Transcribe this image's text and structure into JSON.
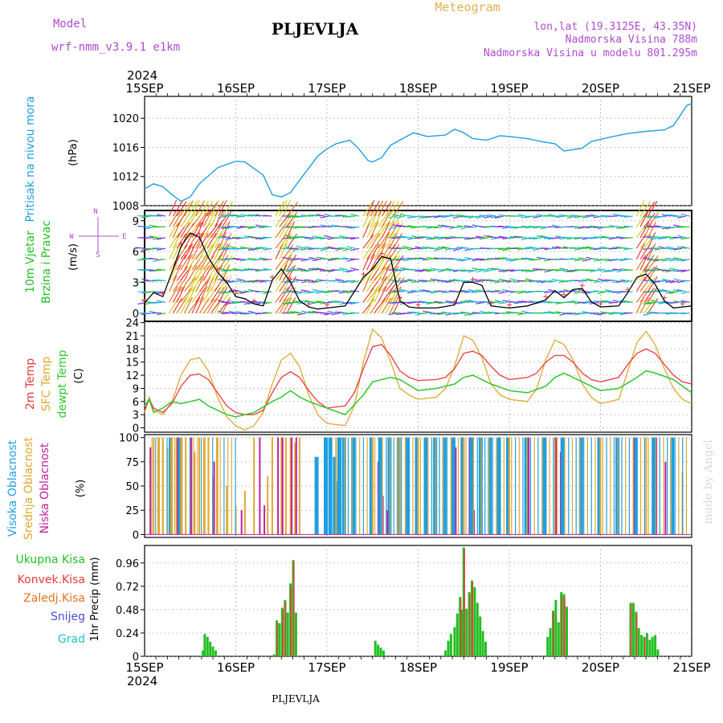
{
  "header": {
    "model_label": "Model",
    "model_name": "wrf-nmm_v3.9.1  e1km",
    "station": "PLJEVLJA",
    "product": "Meteogram",
    "lonlat": "lon,lat (19.3125E, 43.35N)",
    "elevation": "Nadmorska Visina 788m",
    "model_elevation": "Nadmorska Visina u modelu 801.295m",
    "footer_station": "PLJEVLJA",
    "credit": "made by Angel"
  },
  "time_axis": {
    "year": "2024",
    "start_day": 15,
    "end_day": 21,
    "tick_labels": [
      "15SEP",
      "16SEP",
      "17SEP",
      "18SEP",
      "19SEP",
      "20SEP",
      "21SEP"
    ]
  },
  "colors": {
    "pressure": "#1e9fe0",
    "wind_title": "#22c022",
    "temp_2m": "#e83a3a",
    "temp_sfc": "#e0a830",
    "dewpoint": "#2ec82e",
    "cloud_high": "#1e9fe0",
    "cloud_mid": "#e0a830",
    "cloud_low": "#c020a0",
    "precip_total": "#22c022",
    "precip_conv": "#e83a3a",
    "precip_frozen": "#e87020",
    "snow": "#4a4adc",
    "hail": "#20c0c0",
    "wind_speed_line": "#000000",
    "gust_marker": "#e83a3a",
    "label_purple": "#b04ad0",
    "label_gold": "#e0b050"
  },
  "panels": {
    "pressure": {
      "title": "Pritisak na nivou mora",
      "unit": "(hPa)",
      "yticks": [
        "1008",
        "1012",
        "1016",
        "1020"
      ]
    },
    "wind": {
      "title_line1": "10m Vjetar",
      "title_line2": "Brzina i Pravac",
      "unit": "(m/s)",
      "compass_n": "N",
      "compass_s": "S",
      "compass_w": "W",
      "compass_e": "E",
      "yticks": [
        "0",
        "3",
        "6",
        "9"
      ]
    },
    "temperature": {
      "title_2m": "2m Temp",
      "title_sfc": "SFC Temp",
      "title_dew": "dewpt Temp",
      "unit": "(C)",
      "yticks": [
        "0",
        "3",
        "6",
        "9",
        "12",
        "15",
        "18",
        "21",
        "24"
      ]
    },
    "clouds": {
      "title_high": "Visoka Oblacnost",
      "title_mid": "Srednja Oblacnost",
      "title_low": "Niska Oblacnost",
      "unit": "(%)",
      "yticks": [
        "0",
        "25",
        "50",
        "75",
        "100"
      ]
    },
    "precip": {
      "legend_total": "Ukupna Kisa",
      "legend_conv": "Konvek.Kisa",
      "legend_frozen": "Zaledj.Kisa",
      "legend_snow": "Snijeg",
      "legend_hail": "Grad",
      "unit": "1hr Precip (mm)",
      "yticks": [
        "0",
        "0.24",
        "0.48",
        "0.72",
        "0.96"
      ]
    }
  },
  "chart_data": [
    {
      "type": "line",
      "panel": "pressure",
      "ylabel": "(hPa)",
      "ylim": [
        1008,
        1023
      ],
      "x_unit": "day of September 2024",
      "series": [
        {
          "name": "Pritisak na nivou mora",
          "x": [
            15.0,
            15.1,
            15.2,
            15.3,
            15.4,
            15.5,
            15.6,
            15.8,
            16.0,
            16.1,
            16.3,
            16.4,
            16.5,
            16.6,
            16.7,
            16.9,
            17.0,
            17.1,
            17.25,
            17.35,
            17.45,
            17.5,
            17.6,
            17.7,
            17.8,
            17.95,
            18.1,
            18.3,
            18.4,
            18.5,
            18.6,
            18.75,
            18.9,
            19.0,
            19.2,
            19.35,
            19.5,
            19.6,
            19.8,
            19.9,
            20.1,
            20.3,
            20.5,
            20.7,
            20.8,
            20.95,
            21.0
          ],
          "y": [
            1010.3,
            1011.0,
            1010.6,
            1009.5,
            1008.6,
            1009.2,
            1011.0,
            1013.2,
            1014.1,
            1014.0,
            1012.2,
            1009.5,
            1009.2,
            1009.8,
            1011.5,
            1014.8,
            1015.8,
            1016.5,
            1017.0,
            1015.8,
            1014.2,
            1014.0,
            1014.6,
            1016.3,
            1017.0,
            1018.0,
            1017.5,
            1017.7,
            1018.5,
            1018.0,
            1017.2,
            1017.0,
            1017.6,
            1017.5,
            1017.2,
            1016.8,
            1016.5,
            1015.5,
            1015.9,
            1016.8,
            1017.4,
            1017.9,
            1018.2,
            1018.4,
            1019.0,
            1021.8,
            1022.0
          ]
        }
      ]
    },
    {
      "type": "line",
      "panel": "wind",
      "ylabel": "(m/s)",
      "ylim": [
        0,
        10
      ],
      "x_unit": "day of September 2024",
      "series": [
        {
          "name": "10m Vjetar Brzina",
          "x": [
            15.0,
            15.1,
            15.2,
            15.3,
            15.4,
            15.5,
            15.6,
            15.7,
            15.8,
            15.9,
            16.0,
            16.1,
            16.2,
            16.3,
            16.4,
            16.5,
            16.6,
            16.7,
            16.8,
            16.9,
            17.0,
            17.2,
            17.4,
            17.5,
            17.6,
            17.7,
            17.8,
            17.9,
            18.0,
            18.2,
            18.4,
            18.5,
            18.6,
            18.7,
            18.8,
            18.9,
            19.0,
            19.2,
            19.4,
            19.5,
            19.6,
            19.7,
            19.8,
            19.9,
            20.0,
            20.2,
            20.3,
            20.4,
            20.5,
            20.6,
            20.7,
            20.8,
            20.9,
            21.0
          ],
          "y": [
            1.0,
            2.0,
            1.6,
            4.0,
            6.5,
            7.8,
            7.4,
            5.4,
            4.0,
            3.0,
            1.6,
            1.4,
            0.9,
            0.7,
            3.2,
            4.3,
            3.0,
            1.2,
            0.6,
            0.4,
            0.5,
            0.7,
            3.5,
            4.3,
            5.5,
            5.3,
            1.2,
            0.6,
            0.5,
            0.5,
            0.8,
            3.0,
            3.0,
            2.7,
            0.7,
            0.6,
            0.5,
            0.7,
            1.3,
            2.2,
            1.5,
            2.3,
            2.4,
            1.1,
            0.6,
            0.7,
            2.0,
            3.5,
            3.8,
            2.8,
            1.2,
            0.5,
            0.6,
            0.7
          ]
        }
      ]
    },
    {
      "type": "line",
      "panel": "temperature",
      "ylabel": "(C)",
      "ylim": [
        -1,
        24
      ],
      "x_unit": "day of September 2024",
      "series": [
        {
          "name": "2m Temp",
          "x": [
            15.0,
            15.05,
            15.1,
            15.2,
            15.3,
            15.4,
            15.5,
            15.6,
            15.7,
            15.8,
            15.9,
            16.0,
            16.1,
            16.2,
            16.3,
            16.4,
            16.5,
            16.6,
            16.7,
            16.8,
            16.9,
            17.0,
            17.2,
            17.3,
            17.4,
            17.5,
            17.6,
            17.7,
            17.8,
            17.9,
            18.0,
            18.2,
            18.3,
            18.4,
            18.5,
            18.6,
            18.7,
            18.8,
            18.9,
            19.0,
            19.2,
            19.3,
            19.4,
            19.5,
            19.6,
            19.7,
            19.8,
            19.9,
            20.0,
            20.2,
            20.3,
            20.4,
            20.5,
            20.6,
            20.7,
            20.8,
            20.9,
            21.0
          ],
          "y": [
            4.0,
            6.5,
            4.5,
            3.5,
            5.5,
            9.5,
            12.0,
            12.3,
            11.0,
            8.0,
            5.0,
            3.5,
            3.0,
            3.0,
            4.0,
            8.0,
            11.5,
            12.8,
            11.5,
            8.5,
            6.0,
            4.5,
            5.0,
            8.0,
            13.5,
            18.5,
            19.0,
            16.5,
            13.0,
            11.5,
            10.8,
            11.0,
            11.5,
            13.5,
            17.0,
            17.5,
            16.5,
            14.0,
            12.0,
            11.0,
            11.5,
            12.5,
            15.0,
            16.5,
            16.5,
            15.0,
            12.5,
            11.0,
            10.5,
            11.5,
            14.5,
            17.0,
            18.0,
            17.0,
            14.5,
            12.0,
            10.5,
            10.0
          ]
        },
        {
          "name": "SFC Temp",
          "x": [
            15.0,
            15.05,
            15.1,
            15.2,
            15.3,
            15.4,
            15.5,
            15.6,
            15.7,
            15.8,
            15.9,
            16.0,
            16.1,
            16.2,
            16.3,
            16.4,
            16.5,
            16.6,
            16.7,
            16.8,
            16.9,
            17.0,
            17.2,
            17.3,
            17.4,
            17.5,
            17.6,
            17.7,
            17.8,
            17.9,
            18.0,
            18.2,
            18.3,
            18.4,
            18.5,
            18.6,
            18.7,
            18.8,
            18.9,
            19.0,
            19.2,
            19.3,
            19.4,
            19.5,
            19.6,
            19.7,
            19.8,
            19.9,
            20.0,
            20.2,
            20.3,
            20.4,
            20.5,
            20.6,
            20.7,
            20.8,
            20.9,
            21.0
          ],
          "y": [
            3.5,
            7.0,
            4.0,
            3.0,
            6.0,
            12.0,
            15.5,
            16.0,
            13.0,
            7.0,
            2.5,
            0.5,
            -0.5,
            0.5,
            3.5,
            10.0,
            15.5,
            17.0,
            14.0,
            7.5,
            3.0,
            1.0,
            0.5,
            5.0,
            15.0,
            22.5,
            20.5,
            15.0,
            9.0,
            7.5,
            6.5,
            7.0,
            9.0,
            14.0,
            21.0,
            20.0,
            16.0,
            10.0,
            7.5,
            6.5,
            6.0,
            9.0,
            15.5,
            20.0,
            19.0,
            15.5,
            10.0,
            7.0,
            5.5,
            6.5,
            13.0,
            19.5,
            22.0,
            19.0,
            13.5,
            9.0,
            6.5,
            5.5
          ]
        },
        {
          "name": "dewpt Temp",
          "x": [
            15.0,
            15.05,
            15.1,
            15.2,
            15.3,
            15.4,
            15.5,
            15.6,
            15.7,
            15.8,
            15.9,
            16.0,
            16.2,
            16.4,
            16.5,
            16.6,
            16.7,
            16.8,
            17.0,
            17.2,
            17.4,
            17.5,
            17.6,
            17.7,
            17.8,
            18.0,
            18.2,
            18.4,
            18.5,
            18.6,
            18.8,
            19.0,
            19.2,
            19.4,
            19.5,
            19.6,
            19.8,
            20.0,
            20.2,
            20.4,
            20.5,
            20.6,
            20.8,
            21.0
          ],
          "y": [
            5.0,
            6.5,
            3.5,
            4.5,
            6.0,
            5.5,
            6.0,
            6.5,
            5.0,
            4.0,
            3.0,
            2.5,
            3.5,
            6.0,
            7.0,
            8.5,
            7.0,
            6.0,
            4.5,
            3.0,
            7.5,
            10.5,
            11.0,
            11.5,
            11.0,
            8.5,
            9.0,
            10.0,
            11.5,
            12.0,
            10.0,
            8.5,
            8.0,
            9.5,
            11.5,
            12.5,
            10.5,
            8.5,
            9.0,
            11.5,
            13.0,
            12.5,
            11.0,
            8.0
          ]
        }
      ]
    },
    {
      "type": "bar",
      "panel": "clouds",
      "ylabel": "(%)",
      "ylim": [
        0,
        100
      ],
      "x_unit": "day of September 2024",
      "note": "vertical hourly bars; values in percent",
      "series": [
        {
          "name": "Visoka Oblacnost",
          "x": [
            15.3,
            15.4,
            16.9,
            17.0,
            17.05,
            17.1,
            17.12,
            17.15,
            17.2,
            17.3,
            17.5,
            17.6,
            17.7,
            17.8,
            17.9,
            18.0,
            18.1,
            18.2,
            18.3,
            18.4,
            18.5,
            18.6,
            18.7,
            18.8,
            18.9,
            19.0,
            19.2,
            19.4,
            19.6,
            19.8,
            20.0,
            20.2,
            20.4,
            20.6,
            20.8
          ],
          "y": [
            100,
            100,
            80,
            100,
            100,
            80,
            55,
            100,
            100,
            100,
            100,
            100,
            100,
            100,
            100,
            100,
            100,
            100,
            100,
            100,
            100,
            100,
            100,
            100,
            100,
            100,
            100,
            100,
            100,
            100,
            100,
            100,
            100,
            100,
            100
          ]
        },
        {
          "name": "Srednja Oblacnost",
          "x": [
            15.1,
            15.15,
            15.2,
            15.25,
            15.3,
            15.35,
            15.4,
            15.45,
            15.5,
            15.55,
            15.6,
            15.65,
            15.7,
            15.75,
            15.8,
            15.9,
            16.0,
            16.1,
            16.2,
            16.35,
            16.4,
            16.5,
            16.55,
            16.6,
            16.65,
            16.7,
            17.1,
            17.5,
            17.8,
            18.0,
            18.5,
            19.0,
            19.5,
            20.0,
            20.5,
            20.9
          ],
          "y": [
            100,
            100,
            100,
            90,
            100,
            100,
            100,
            100,
            100,
            85,
            100,
            100,
            100,
            60,
            100,
            50,
            30,
            45,
            100,
            60,
            100,
            100,
            100,
            100,
            95,
            100,
            100,
            100,
            100,
            100,
            100,
            100,
            100,
            100,
            100,
            65
          ]
        },
        {
          "name": "Niska Oblacnost",
          "x": [
            15.05,
            15.35,
            15.5,
            15.75,
            16.05,
            16.25,
            16.3,
            16.45,
            16.5,
            16.6,
            16.65,
            17.55,
            17.6,
            17.65,
            18.4,
            18.55,
            18.6,
            19.2,
            19.5,
            19.55,
            20.35,
            20.6,
            20.7
          ],
          "y": [
            90,
            100,
            100,
            75,
            25,
            100,
            30,
            100,
            100,
            100,
            100,
            75,
            40,
            25,
            90,
            100,
            25,
            100,
            100,
            85,
            100,
            100,
            75
          ]
        }
      ]
    },
    {
      "type": "bar",
      "panel": "precip",
      "ylabel": "1hr Precip (mm)",
      "ylim": [
        0,
        1.1
      ],
      "x_unit": "day of September 2024",
      "series": [
        {
          "name": "Ukupna Kisa",
          "x": [
            15.64,
            15.66,
            15.69,
            15.72,
            15.75,
            15.78,
            16.42,
            16.45,
            16.48,
            16.51,
            16.54,
            16.57,
            16.6,
            16.63,
            16.66,
            17.53,
            17.56,
            17.59,
            17.62,
            18.3,
            18.33,
            18.36,
            18.4,
            18.43,
            18.46,
            18.48,
            18.5,
            18.53,
            18.56,
            18.59,
            18.62,
            18.65,
            18.68,
            18.71,
            18.74,
            19.42,
            19.45,
            19.48,
            19.51,
            19.54,
            19.57,
            19.6,
            19.63,
            20.33,
            20.36,
            20.39,
            20.42,
            20.45,
            20.48,
            20.51,
            20.54,
            20.57,
            20.6,
            20.63
          ],
          "y": [
            0.06,
            0.23,
            0.2,
            0.15,
            0.1,
            0.06,
            0.02,
            0.37,
            0.34,
            0.5,
            0.58,
            0.45,
            0.75,
            0.99,
            0.45,
            0.16,
            0.12,
            0.09,
            0.06,
            0.06,
            0.16,
            0.23,
            0.3,
            0.44,
            0.61,
            0.48,
            1.12,
            0.49,
            0.66,
            0.78,
            0.71,
            0.55,
            0.41,
            0.26,
            0.15,
            0.2,
            0.29,
            0.47,
            0.58,
            0.35,
            0.66,
            0.64,
            0.51,
            0.55,
            0.55,
            0.46,
            0.29,
            0.22,
            0.2,
            0.24,
            0.17,
            0.2,
            0.22,
            0.07
          ]
        },
        {
          "name": "Konvek.Kisa",
          "x": [
            16.45,
            16.51,
            16.54,
            16.6,
            16.63,
            18.46,
            18.5,
            18.56,
            18.59,
            19.48,
            19.57,
            19.6,
            20.33,
            20.39,
            20.48
          ],
          "y": [
            0.35,
            0.48,
            0.56,
            0.73,
            0.98,
            0.6,
            1.1,
            0.64,
            0.76,
            0.45,
            0.62,
            0.6,
            0.54,
            0.44,
            0.19
          ]
        }
      ]
    }
  ]
}
